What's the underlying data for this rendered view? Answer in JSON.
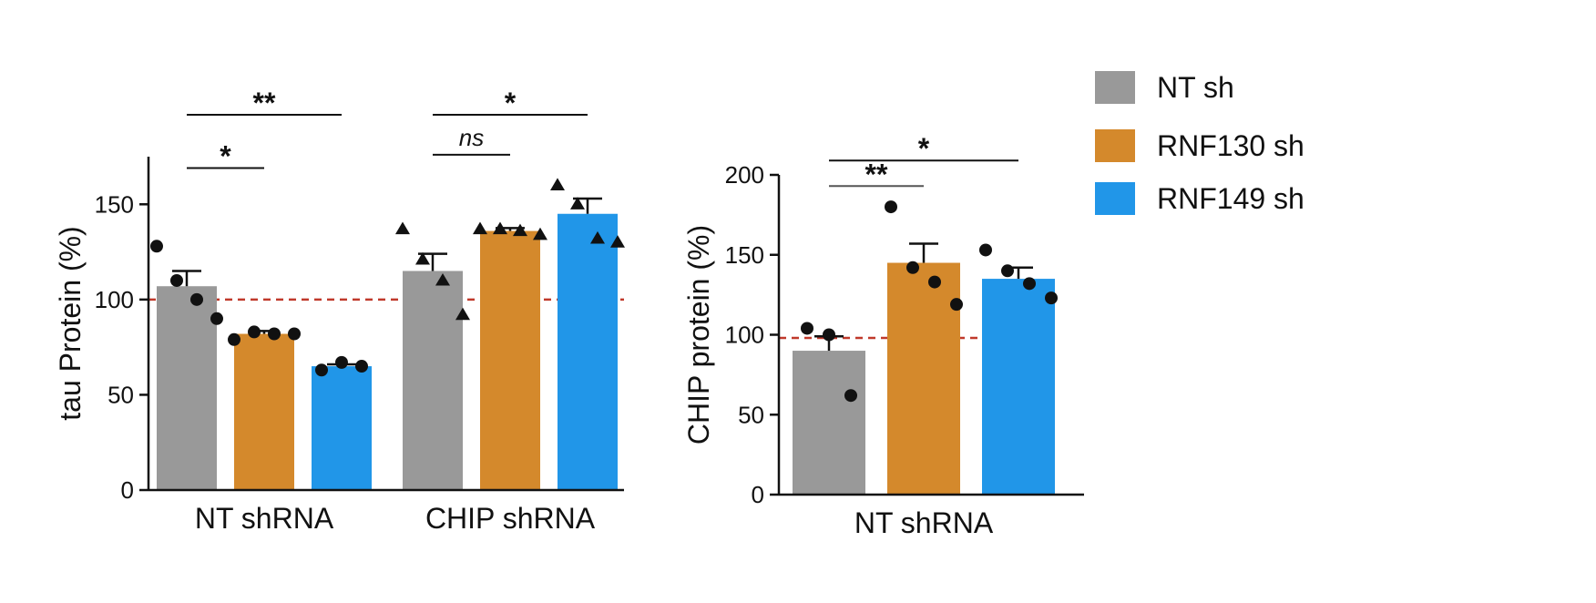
{
  "colors": {
    "NT sh": "#999999",
    "RNF130 sh": "#d4892c",
    "RNF149 sh": "#2196e8",
    "reference_line": "#c0392b"
  },
  "legend": {
    "items": [
      {
        "label": "NT sh"
      },
      {
        "label": "RNF130 sh"
      },
      {
        "label": "RNF149 sh"
      }
    ]
  },
  "chart_data": [
    {
      "type": "bar",
      "ylabel": "tau Protein (%)",
      "ylim": [
        0,
        175
      ],
      "yticks": [
        0,
        50,
        100,
        150
      ],
      "reference_line": 100,
      "groups": [
        "NT shRNA",
        "CHIP shRNA"
      ],
      "series_names": [
        "NT sh",
        "RNF130 sh",
        "RNF149 sh"
      ],
      "bars": [
        {
          "group": "NT shRNA",
          "series": "NT sh",
          "mean": 107,
          "sem": 8,
          "points": [
            128,
            110,
            100,
            90
          ],
          "marker": "circle"
        },
        {
          "group": "NT shRNA",
          "series": "RNF130 sh",
          "mean": 82,
          "sem": 1.5,
          "points": [
            79,
            83,
            82,
            82
          ],
          "marker": "circle"
        },
        {
          "group": "NT shRNA",
          "series": "RNF149 sh",
          "mean": 65,
          "sem": 1,
          "points": [
            63,
            67,
            65
          ],
          "marker": "circle"
        },
        {
          "group": "CHIP shRNA",
          "series": "NT sh",
          "mean": 115,
          "sem": 9,
          "points": [
            137,
            121,
            110,
            92
          ],
          "marker": "triangle"
        },
        {
          "group": "CHIP shRNA",
          "series": "RNF130 sh",
          "mean": 136,
          "sem": 1.5,
          "points": [
            137,
            137,
            136,
            134
          ],
          "marker": "triangle"
        },
        {
          "group": "CHIP shRNA",
          "series": "RNF149 sh",
          "mean": 145,
          "sem": 8,
          "points": [
            160,
            150,
            132,
            130
          ],
          "marker": "triangle"
        }
      ],
      "significance": [
        {
          "from": [
            0,
            0
          ],
          "to": [
            0,
            1
          ],
          "label": "*",
          "y": 169
        },
        {
          "from": [
            0,
            0
          ],
          "to": [
            0,
            2
          ],
          "label": "**",
          "y": 197
        },
        {
          "from": [
            1,
            0
          ],
          "to": [
            1,
            1
          ],
          "label": "ns",
          "y": 176
        },
        {
          "from": [
            1,
            0
          ],
          "to": [
            1,
            2
          ],
          "label": "*",
          "y": 197
        }
      ]
    },
    {
      "type": "bar",
      "ylabel": "CHIP protein (%)",
      "ylim": [
        0,
        200
      ],
      "yticks": [
        0,
        50,
        100,
        150,
        200
      ],
      "reference_line": 98,
      "groups": [
        "NT shRNA"
      ],
      "series_names": [
        "NT sh",
        "RNF130 sh",
        "RNF149 sh"
      ],
      "bars": [
        {
          "group": "NT shRNA",
          "series": "NT sh",
          "mean": 90,
          "sem": 9,
          "points": [
            104,
            100,
            62
          ],
          "marker": "circle"
        },
        {
          "group": "NT shRNA",
          "series": "RNF130 sh",
          "mean": 145,
          "sem": 12,
          "points": [
            180,
            142,
            133,
            119
          ],
          "marker": "circle"
        },
        {
          "group": "NT shRNA",
          "series": "RNF149 sh",
          "mean": 135,
          "sem": 7,
          "points": [
            153,
            140,
            132,
            123
          ],
          "marker": "circle"
        }
      ],
      "significance": [
        {
          "from": [
            0,
            0
          ],
          "to": [
            0,
            1
          ],
          "label": "**",
          "y": 193,
          "gray": true
        },
        {
          "from": [
            0,
            0
          ],
          "to": [
            0,
            2
          ],
          "label": "*",
          "y": 209
        }
      ]
    }
  ]
}
